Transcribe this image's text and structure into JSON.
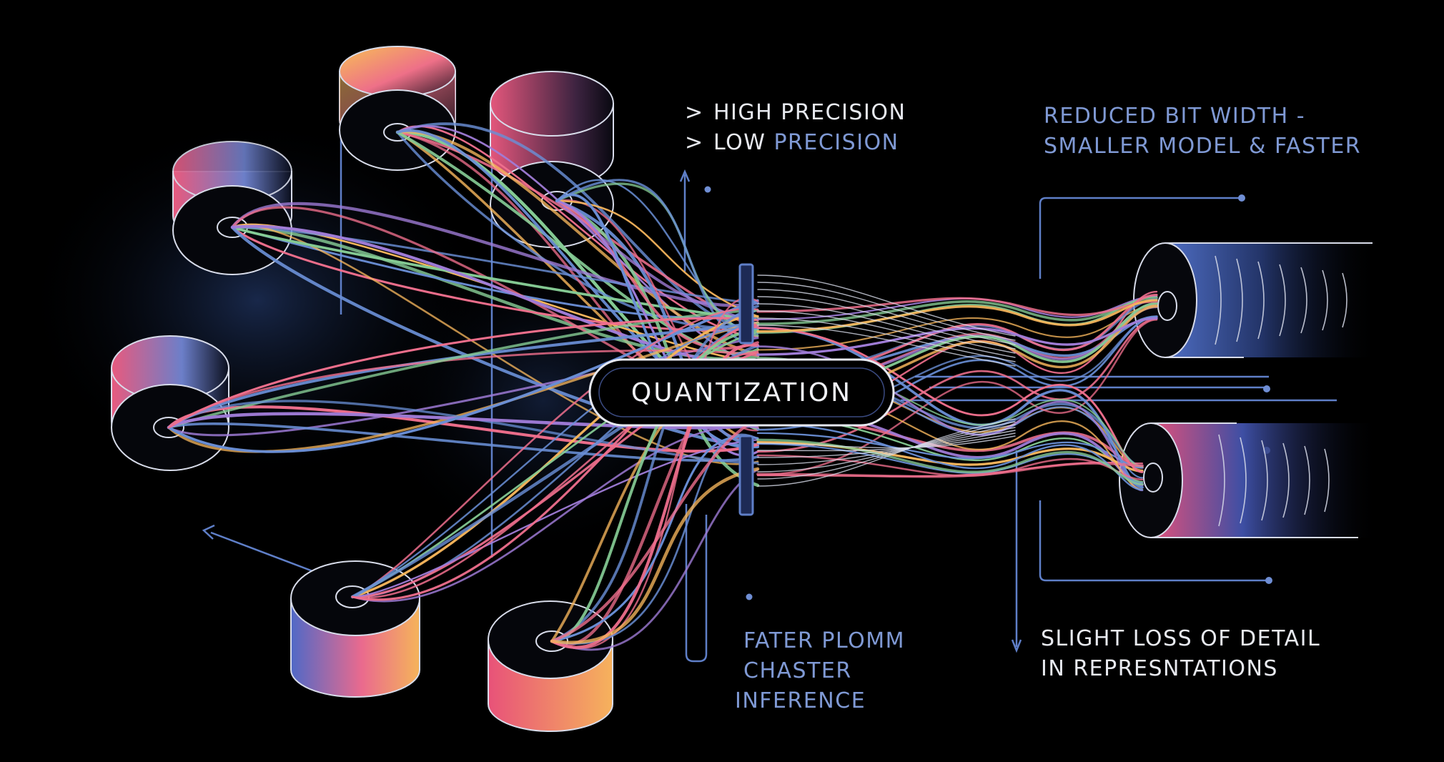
{
  "center": {
    "label": "QUANTIZATION"
  },
  "legend": {
    "high_prefix": ">",
    "high_text": "HIGH PRECISION",
    "low_prefix": ">",
    "low_word": "LOW",
    "low_word2": "PRECISION"
  },
  "callouts": {
    "reduced": {
      "line1": "REDUCED BIT WIDTH -",
      "line2": "SMALLER MODEL & FASTER"
    },
    "fater": {
      "line1": "FATER PLOMM",
      "line2": "CHASTER",
      "line3": "INFERENCE"
    },
    "slight": {
      "line1": "SLIGHT LOSS OF DETAIL",
      "line2": "IN REPRESNTATIONS"
    }
  },
  "colors": {
    "background": "#000000",
    "label_white": "#e8eaf0",
    "label_blue": "#7f99d4",
    "line_blue": "#5f7fc8",
    "strand_pink": "#ef6f8d",
    "strand_orange": "#f6b65c",
    "strand_green": "#86cc95",
    "strand_blue": "#6a8fd6",
    "strand_purple": "#a07cd8"
  },
  "diagram": {
    "sources": [
      "cylinder",
      "cylinder",
      "cylinder",
      "cylinder",
      "cylinder",
      "cylinder"
    ],
    "outputs": [
      "cylinder",
      "cylinder"
    ]
  }
}
